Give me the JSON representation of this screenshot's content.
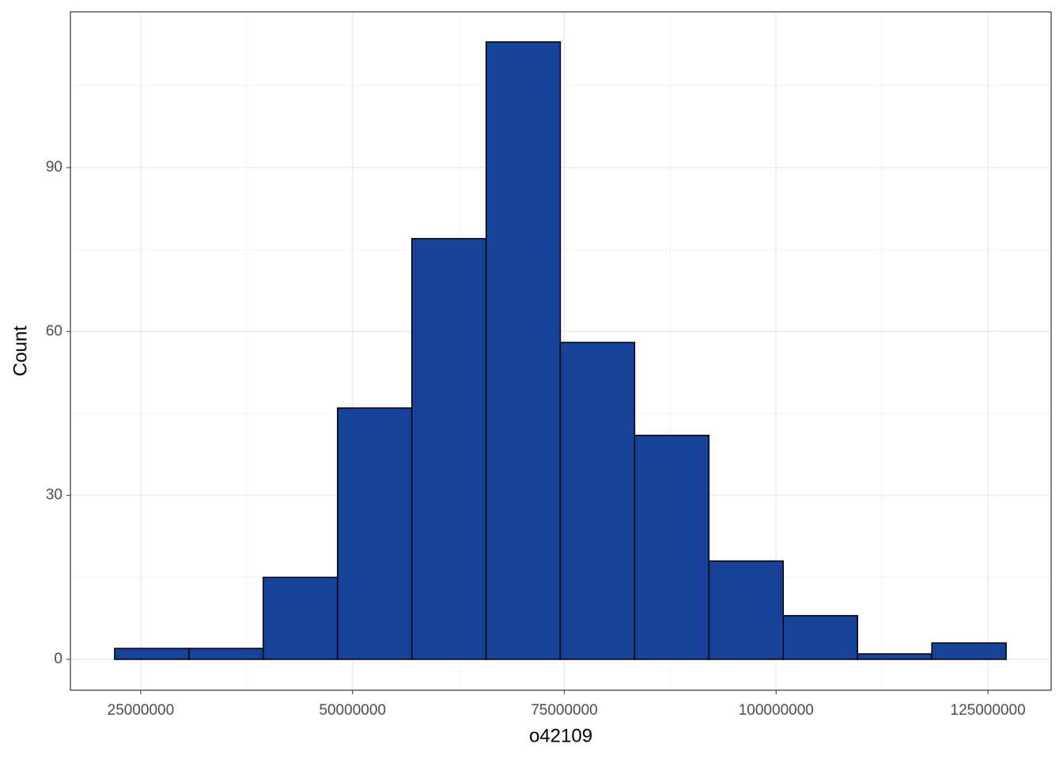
{
  "chart_data": {
    "type": "histogram",
    "x_label": "o42109",
    "y_label": "Count",
    "bins": [
      21920000,
      30690000,
      39460000,
      48230000,
      57000000,
      65770000,
      74530000,
      83300000,
      92070000,
      100840000,
      109610000,
      118380000,
      127150000
    ],
    "values": [
      2,
      2,
      15,
      46,
      77,
      113,
      58,
      41,
      18,
      8,
      1,
      3
    ],
    "color": "#18429a",
    "edge_color": "#000000",
    "xlim": [
      16700000,
      132460000
    ],
    "xticks": [
      25000000,
      50000000,
      75000000,
      100000000,
      125000000
    ],
    "xminor": [
      37500000,
      62500000,
      87500000,
      112500000
    ],
    "ylim": [
      -5.65,
      118.5
    ],
    "yticks": [
      0,
      30,
      60,
      90
    ],
    "yminor": [
      15,
      45,
      75,
      105
    ],
    "grid": true
  }
}
